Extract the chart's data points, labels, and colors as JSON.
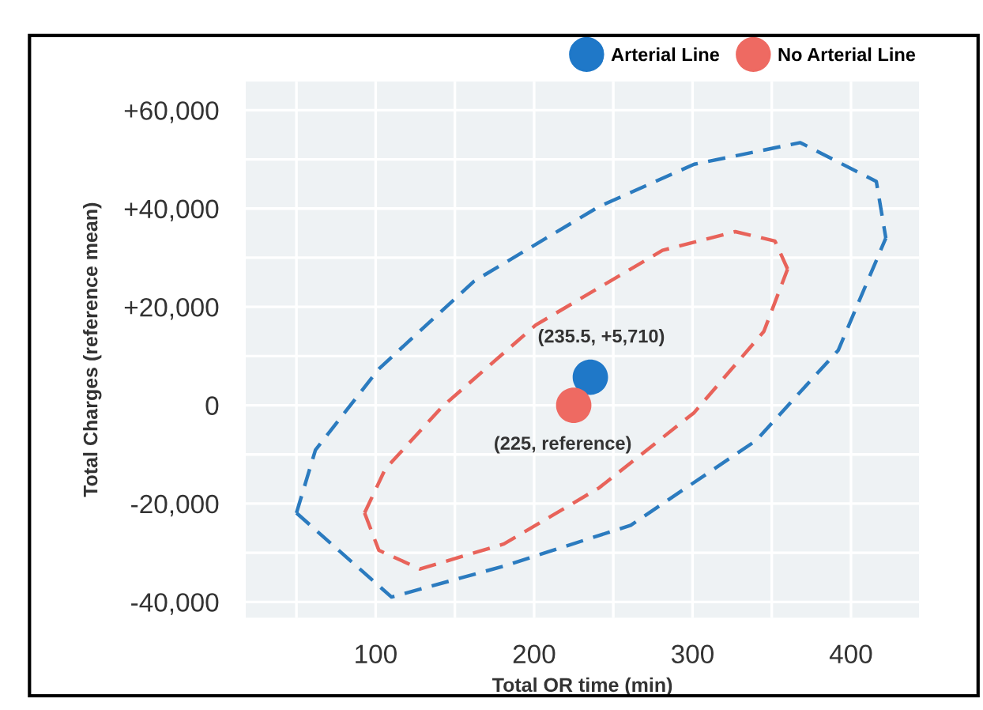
{
  "chart_data": {
    "type": "scatter",
    "xlabel": "Total OR time (min)",
    "ylabel": "Total Charges (reference mean)",
    "xlim": [
      18,
      443
    ],
    "ylim": [
      -43200,
      65800
    ],
    "xticks": [
      {
        "value": 50,
        "label": null
      },
      100,
      {
        "value": 150,
        "label": null
      },
      200,
      {
        "value": 250,
        "label": null
      },
      300,
      {
        "value": 350,
        "label": null
      },
      400
    ],
    "yticks": [
      {
        "value": -40000,
        "label": "-40,000"
      },
      {
        "value": -30000,
        "label": null
      },
      {
        "value": -20000,
        "label": "-20,000"
      },
      {
        "value": -10000,
        "label": null
      },
      0,
      {
        "value": 10000,
        "label": null
      },
      {
        "value": 20000,
        "label": "+20,000"
      },
      {
        "value": 30000,
        "label": null
      },
      {
        "value": 40000,
        "label": "+40,000"
      },
      {
        "value": 50000,
        "label": null
      },
      {
        "value": 60000,
        "label": "+60,000"
      }
    ],
    "grid": true,
    "legend": "top right",
    "series": [
      {
        "type": "line",
        "color": "#2b7bbf",
        "line_style": "dashed",
        "marker": "none",
        "x": [
          50,
          62,
          102,
          162,
          241,
          301,
          368,
          416,
          422
        ],
        "values": [
          -21900,
          -9100,
          7400,
          25200,
          40400,
          49000,
          53400,
          45500,
          34000
        ]
      },
      {
        "type": "line",
        "color": "#2b7bbf",
        "line_style": "dashed",
        "marker": "none",
        "x": [
          50,
          110,
          181,
          261,
          340,
          392,
          422
        ],
        "values": [
          -21900,
          -39000,
          -32700,
          -24400,
          -7200,
          11200,
          34000
        ]
      },
      {
        "type": "line",
        "color": "#e8635a",
        "line_style": "dashed",
        "marker": "none",
        "x": [
          93,
          106,
          142,
          201,
          281,
          327,
          352,
          360
        ],
        "values": [
          -21900,
          -13000,
          -300,
          16300,
          31500,
          35300,
          33400,
          27700
        ]
      },
      {
        "type": "line",
        "color": "#e8635a",
        "line_style": "dashed",
        "marker": "none",
        "x": [
          93,
          102,
          128,
          181,
          241,
          301,
          345,
          360
        ],
        "values": [
          -21900,
          -29500,
          -33300,
          -28200,
          -16800,
          -1500,
          15000,
          27700
        ]
      },
      {
        "name": "Arterial Line",
        "marker": "circle",
        "color": "#1f78c8",
        "x": [
          235.5
        ],
        "values": [
          5710
        ]
      },
      {
        "name": "No Arterial Line",
        "marker": "circle",
        "color": "#ee6a62",
        "x": [
          225
        ],
        "values": [
          0
        ]
      }
    ],
    "annotations": [
      {
        "text": "(235.5, +5,710)",
        "x": 235.5,
        "y": 5710
      },
      {
        "text": "(225, reference)",
        "x": 225,
        "y": 0
      }
    ]
  }
}
